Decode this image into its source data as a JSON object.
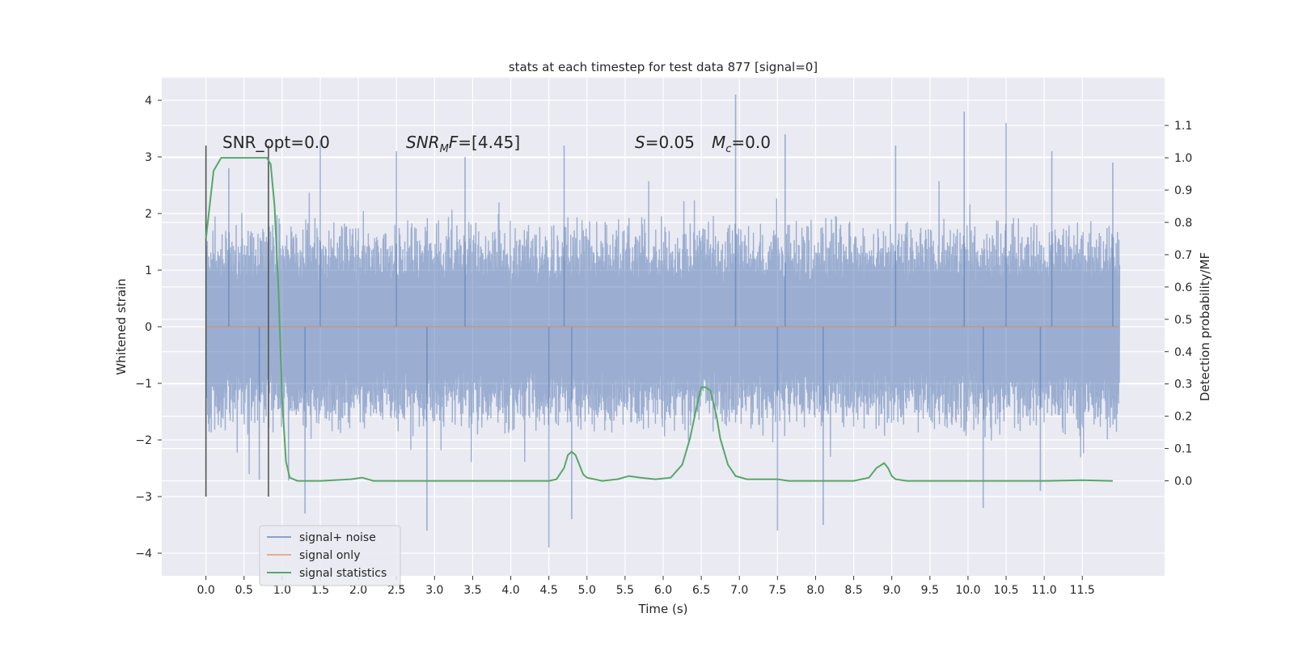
{
  "chart_data": {
    "type": "line",
    "title": "stats at each timestep for test data 877 [signal=0]",
    "xlabel": "Time (s)",
    "ylabel": "Whitened strain",
    "y2label": "Detection probability/MF",
    "xlim": [
      -0.58,
      12.58
    ],
    "ylim": [
      -4.4,
      4.4
    ],
    "y2lim": [
      -0.294,
      1.248
    ],
    "x_ticks": [
      0.0,
      0.5,
      1.0,
      1.5,
      2.0,
      2.5,
      3.0,
      3.5,
      4.0,
      4.5,
      5.0,
      5.5,
      6.0,
      6.5,
      7.0,
      7.5,
      8.0,
      8.5,
      9.0,
      9.5,
      10.0,
      10.5,
      11.0,
      11.5
    ],
    "x_tick_labels": [
      "0.0",
      "0.5",
      "1.0",
      "1.5",
      "2.0",
      "2.5",
      "3.0",
      "3.5",
      "4.0",
      "4.5",
      "5.0",
      "5.5",
      "6.0",
      "6.5",
      "7.0",
      "7.5",
      "8.0",
      "8.5",
      "9.0",
      "9.5",
      "10.0",
      "10.5",
      "11.0",
      "11.5"
    ],
    "y_ticks": [
      -4,
      -3,
      -2,
      -1,
      0,
      1,
      2,
      3,
      4
    ],
    "y_tick_labels": [
      "−4",
      "−3",
      "−2",
      "−1",
      "0",
      "1",
      "2",
      "3",
      "4"
    ],
    "y2_ticks": [
      0.0,
      0.1,
      0.2,
      0.3,
      0.4,
      0.5,
      0.6,
      0.7,
      0.8,
      0.9,
      1.0,
      1.1
    ],
    "y2_tick_labels": [
      "0.0",
      "0.1",
      "0.2",
      "0.3",
      "0.4",
      "0.5",
      "0.6",
      "0.7",
      "0.8",
      "0.9",
      "1.0",
      "1.1"
    ],
    "grid": true,
    "legend_position": "bottom-left",
    "noise_envelope": {
      "x_range": [
        0.0,
        11.99
      ],
      "typical_abs_amplitude": 1.4,
      "upper_spikes": [
        [
          0.3,
          2.8
        ],
        [
          1.5,
          3.3
        ],
        [
          2.5,
          3.1
        ],
        [
          3.4,
          3.0
        ],
        [
          4.7,
          3.2
        ],
        [
          6.95,
          4.1
        ],
        [
          7.6,
          3.4
        ],
        [
          9.05,
          3.2
        ],
        [
          9.95,
          3.8
        ],
        [
          10.5,
          3.6
        ],
        [
          11.1,
          3.1
        ],
        [
          11.9,
          2.9
        ]
      ],
      "lower_spikes": [
        [
          0.7,
          -2.7
        ],
        [
          1.3,
          -3.3
        ],
        [
          2.9,
          -3.6
        ],
        [
          4.5,
          -3.9
        ],
        [
          4.8,
          -3.4
        ],
        [
          7.5,
          -3.6
        ],
        [
          8.1,
          -3.5
        ],
        [
          10.2,
          -3.2
        ],
        [
          10.95,
          -2.9
        ]
      ]
    },
    "series": [
      {
        "name": "signal+ noise",
        "axis": "left",
        "color": "#4c72b0",
        "alpha": 0.5
      },
      {
        "name": "signal only",
        "axis": "left",
        "color": "#dd8452",
        "x": [
          0.0,
          11.99
        ],
        "y": [
          0.0,
          0.0
        ]
      },
      {
        "name": "signal statistics",
        "axis": "right",
        "color": "#55a868",
        "x": [
          0.0,
          0.1,
          0.2,
          0.3,
          0.5,
          0.7,
          0.8,
          0.85,
          0.9,
          0.95,
          1.0,
          1.05,
          1.1,
          1.2,
          1.5,
          1.9,
          2.05,
          2.2,
          2.5,
          3.0,
          3.5,
          4.0,
          4.3,
          4.5,
          4.6,
          4.7,
          4.75,
          4.8,
          4.85,
          4.9,
          4.95,
          5.0,
          5.2,
          5.4,
          5.55,
          5.7,
          5.9,
          6.1,
          6.25,
          6.35,
          6.45,
          6.5,
          6.55,
          6.62,
          6.7,
          6.75,
          6.85,
          6.95,
          7.1,
          7.5,
          7.65,
          7.9,
          8.5,
          8.7,
          8.8,
          8.9,
          8.95,
          9.0,
          9.05,
          9.2,
          10.0,
          11.0,
          11.5,
          11.9
        ],
        "y": [
          0.75,
          0.96,
          1.0,
          1.0,
          1.0,
          1.0,
          1.0,
          0.98,
          0.85,
          0.6,
          0.25,
          0.06,
          0.01,
          0.0,
          0.0,
          0.005,
          0.01,
          0.0,
          0.0,
          0.0,
          0.0,
          0.0,
          0.0,
          0.0,
          0.005,
          0.04,
          0.08,
          0.09,
          0.08,
          0.05,
          0.02,
          0.01,
          0.0,
          0.005,
          0.015,
          0.01,
          0.005,
          0.01,
          0.05,
          0.13,
          0.24,
          0.29,
          0.29,
          0.28,
          0.2,
          0.13,
          0.05,
          0.015,
          0.005,
          0.005,
          0.0,
          0.0,
          0.0,
          0.01,
          0.04,
          0.055,
          0.04,
          0.015,
          0.005,
          0.0,
          0.0,
          0.0,
          0.002,
          0.0
        ]
      }
    ],
    "vertical_lines": [
      {
        "x": 0.0,
        "ymin": -3.0,
        "ymax": 3.2,
        "color": "#555555"
      },
      {
        "x": 0.82,
        "ymin": -3.0,
        "ymax": 3.2,
        "color": "#555555"
      }
    ],
    "annotations": [
      {
        "id": "snr-opt",
        "x": 0.2,
        "y": 3.2,
        "text_plain": "SNR_opt=0.0"
      },
      {
        "id": "snr-mf",
        "x": 2.6,
        "y": 3.2,
        "text_plain": "SNR_MF=[4.45]"
      },
      {
        "id": "s-value",
        "x": 5.6,
        "y": 3.2,
        "text_plain": "S=0.05"
      },
      {
        "id": "mc-value",
        "x": 6.6,
        "y": 3.2,
        "text_plain": "M_c=0.0"
      }
    ],
    "annotation_parts": {
      "snr_opt": "SNR_opt=0.0",
      "snr_mf_sym": "SNR",
      "snr_mf_sub": "M",
      "snr_mf_tail": "F",
      "snr_mf_val": "=[4.45]",
      "s_sym": "S",
      "s_val": "=0.05",
      "mc_sym": "M",
      "mc_sub": "c",
      "mc_val": "=0.0"
    }
  }
}
